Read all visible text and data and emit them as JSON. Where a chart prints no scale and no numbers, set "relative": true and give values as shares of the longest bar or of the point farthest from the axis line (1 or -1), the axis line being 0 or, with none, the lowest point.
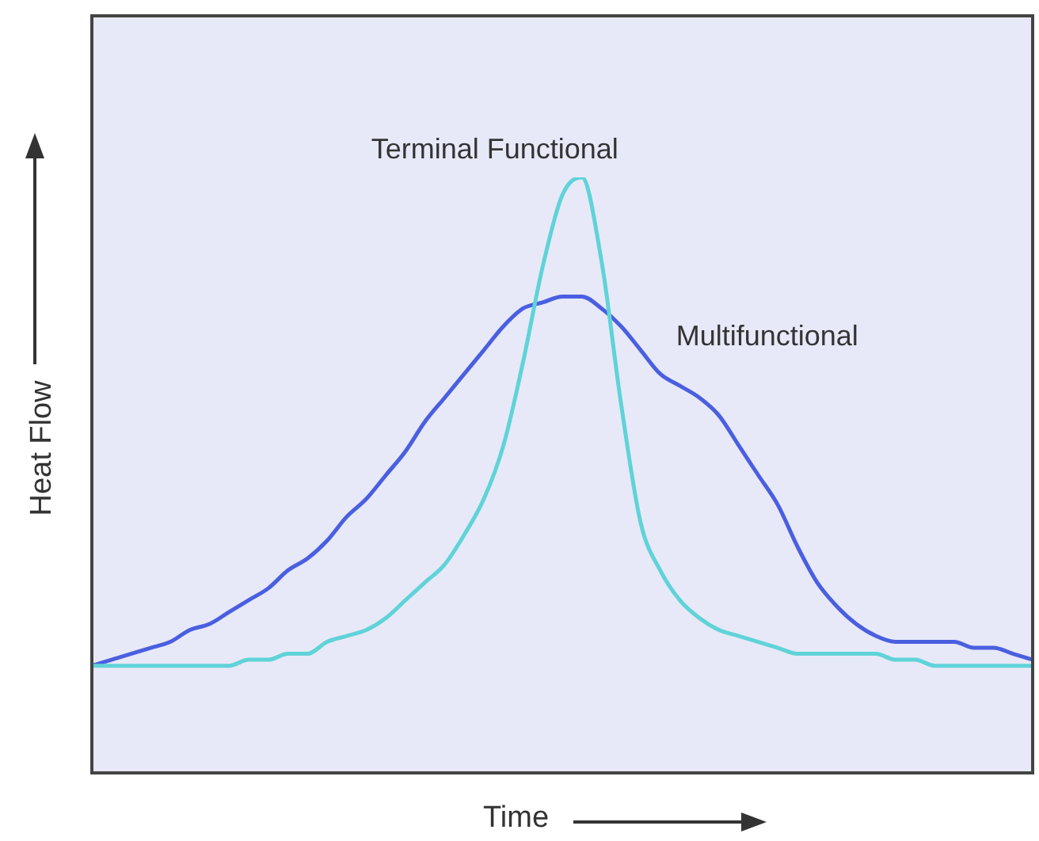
{
  "chart_data": {
    "type": "line",
    "relative": true,
    "xlabel": "Time",
    "ylabel": "Heat Flow",
    "marker": "none",
    "line_style": "solid",
    "legend": false,
    "categories": [
      null,
      null,
      null,
      null,
      null,
      null,
      null,
      null,
      null,
      null,
      null,
      null,
      null,
      null,
      null,
      null,
      null,
      null,
      null,
      null,
      null,
      null,
      null,
      null,
      null,
      null,
      null,
      null,
      null,
      null,
      null,
      null,
      null,
      null,
      null,
      null,
      null,
      null,
      null,
      null,
      null,
      null,
      null,
      null,
      null,
      null,
      null,
      null,
      null
    ],
    "series": [
      {
        "name": "Terminal Functional",
        "color": "#5fd3d8",
        "values": [
          0.18,
          0.18,
          0.18,
          0.18,
          0.18,
          0.18,
          0.18,
          0.18,
          0.19,
          0.19,
          0.2,
          0.2,
          0.22,
          0.23,
          0.24,
          0.26,
          0.29,
          0.32,
          0.35,
          0.4,
          0.46,
          0.55,
          0.69,
          0.85,
          0.97,
          1,
          0.86,
          0.62,
          0.42,
          0.34,
          0.29,
          0.26,
          0.24,
          0.23,
          0.22,
          0.21,
          0.2,
          0.2,
          0.2,
          0.2,
          0.2,
          0.19,
          0.19,
          0.18,
          0.18,
          0.18,
          0.18,
          0.18,
          0.18
        ]
      },
      {
        "name": "Multifunctional",
        "color": "#4a5fe0",
        "values": [
          0.18,
          0.19,
          0.2,
          0.21,
          0.22,
          0.24,
          0.25,
          0.27,
          0.29,
          0.31,
          0.34,
          0.36,
          0.39,
          0.43,
          0.46,
          0.5,
          0.54,
          0.59,
          0.63,
          0.67,
          0.71,
          0.75,
          0.78,
          0.79,
          0.8,
          0.8,
          0.78,
          0.75,
          0.71,
          0.67,
          0.65,
          0.63,
          0.6,
          0.55,
          0.5,
          0.45,
          0.38,
          0.32,
          0.28,
          0.25,
          0.23,
          0.22,
          0.22,
          0.22,
          0.22,
          0.21,
          0.21,
          0.2,
          0.19
        ]
      }
    ]
  }
}
